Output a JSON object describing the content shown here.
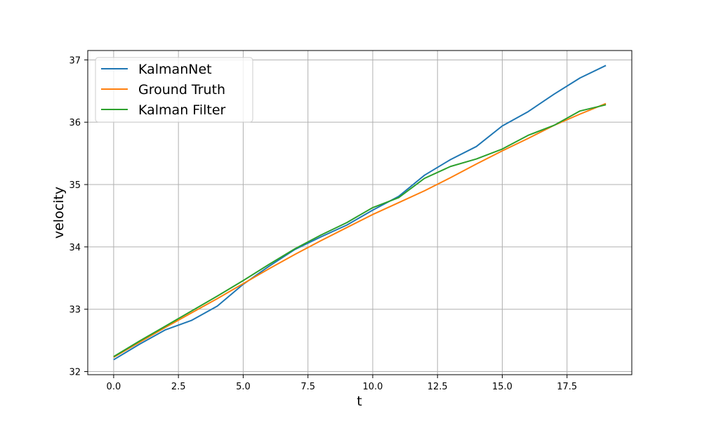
{
  "chart_data": {
    "type": "line",
    "xlabel": "t",
    "ylabel": "velocity",
    "xlim": [
      -1,
      20
    ],
    "ylim": [
      31.95,
      37.15
    ],
    "xticks": [
      0.0,
      2.5,
      5.0,
      7.5,
      10.0,
      12.5,
      15.0,
      17.5
    ],
    "xtick_labels": [
      "0.0",
      "2.5",
      "5.0",
      "7.5",
      "10.0",
      "12.5",
      "15.0",
      "17.5"
    ],
    "yticks": [
      32,
      33,
      34,
      35,
      36,
      37
    ],
    "ytick_labels": [
      "32",
      "33",
      "34",
      "35",
      "36",
      "37"
    ],
    "grid": true,
    "legend_position": "top-left",
    "x": [
      0,
      1,
      2,
      3,
      4,
      5,
      6,
      7,
      8,
      9,
      10,
      11,
      12,
      13,
      14,
      15,
      16,
      17,
      18,
      19
    ],
    "series": [
      {
        "name": "KalmanNet",
        "color": "#1f77b4",
        "values": [
          32.19,
          32.44,
          32.67,
          32.82,
          33.05,
          33.4,
          33.69,
          33.96,
          34.16,
          34.35,
          34.59,
          34.81,
          35.15,
          35.4,
          35.61,
          35.94,
          36.17,
          36.45,
          36.71,
          36.91
        ]
      },
      {
        "name": "Ground Truth",
        "color": "#ff7f0e",
        "values": [
          32.23,
          32.47,
          32.71,
          32.94,
          33.17,
          33.41,
          33.65,
          33.88,
          34.1,
          34.31,
          34.52,
          34.71,
          34.9,
          35.11,
          35.33,
          35.54,
          35.74,
          35.95,
          36.13,
          36.3
        ]
      },
      {
        "name": "Kalman Filter",
        "color": "#2ca02c",
        "values": [
          32.24,
          32.49,
          32.73,
          32.97,
          33.21,
          33.46,
          33.72,
          33.97,
          34.19,
          34.39,
          34.63,
          34.79,
          35.1,
          35.29,
          35.41,
          35.57,
          35.79,
          35.95,
          36.18,
          36.28
        ]
      }
    ]
  }
}
